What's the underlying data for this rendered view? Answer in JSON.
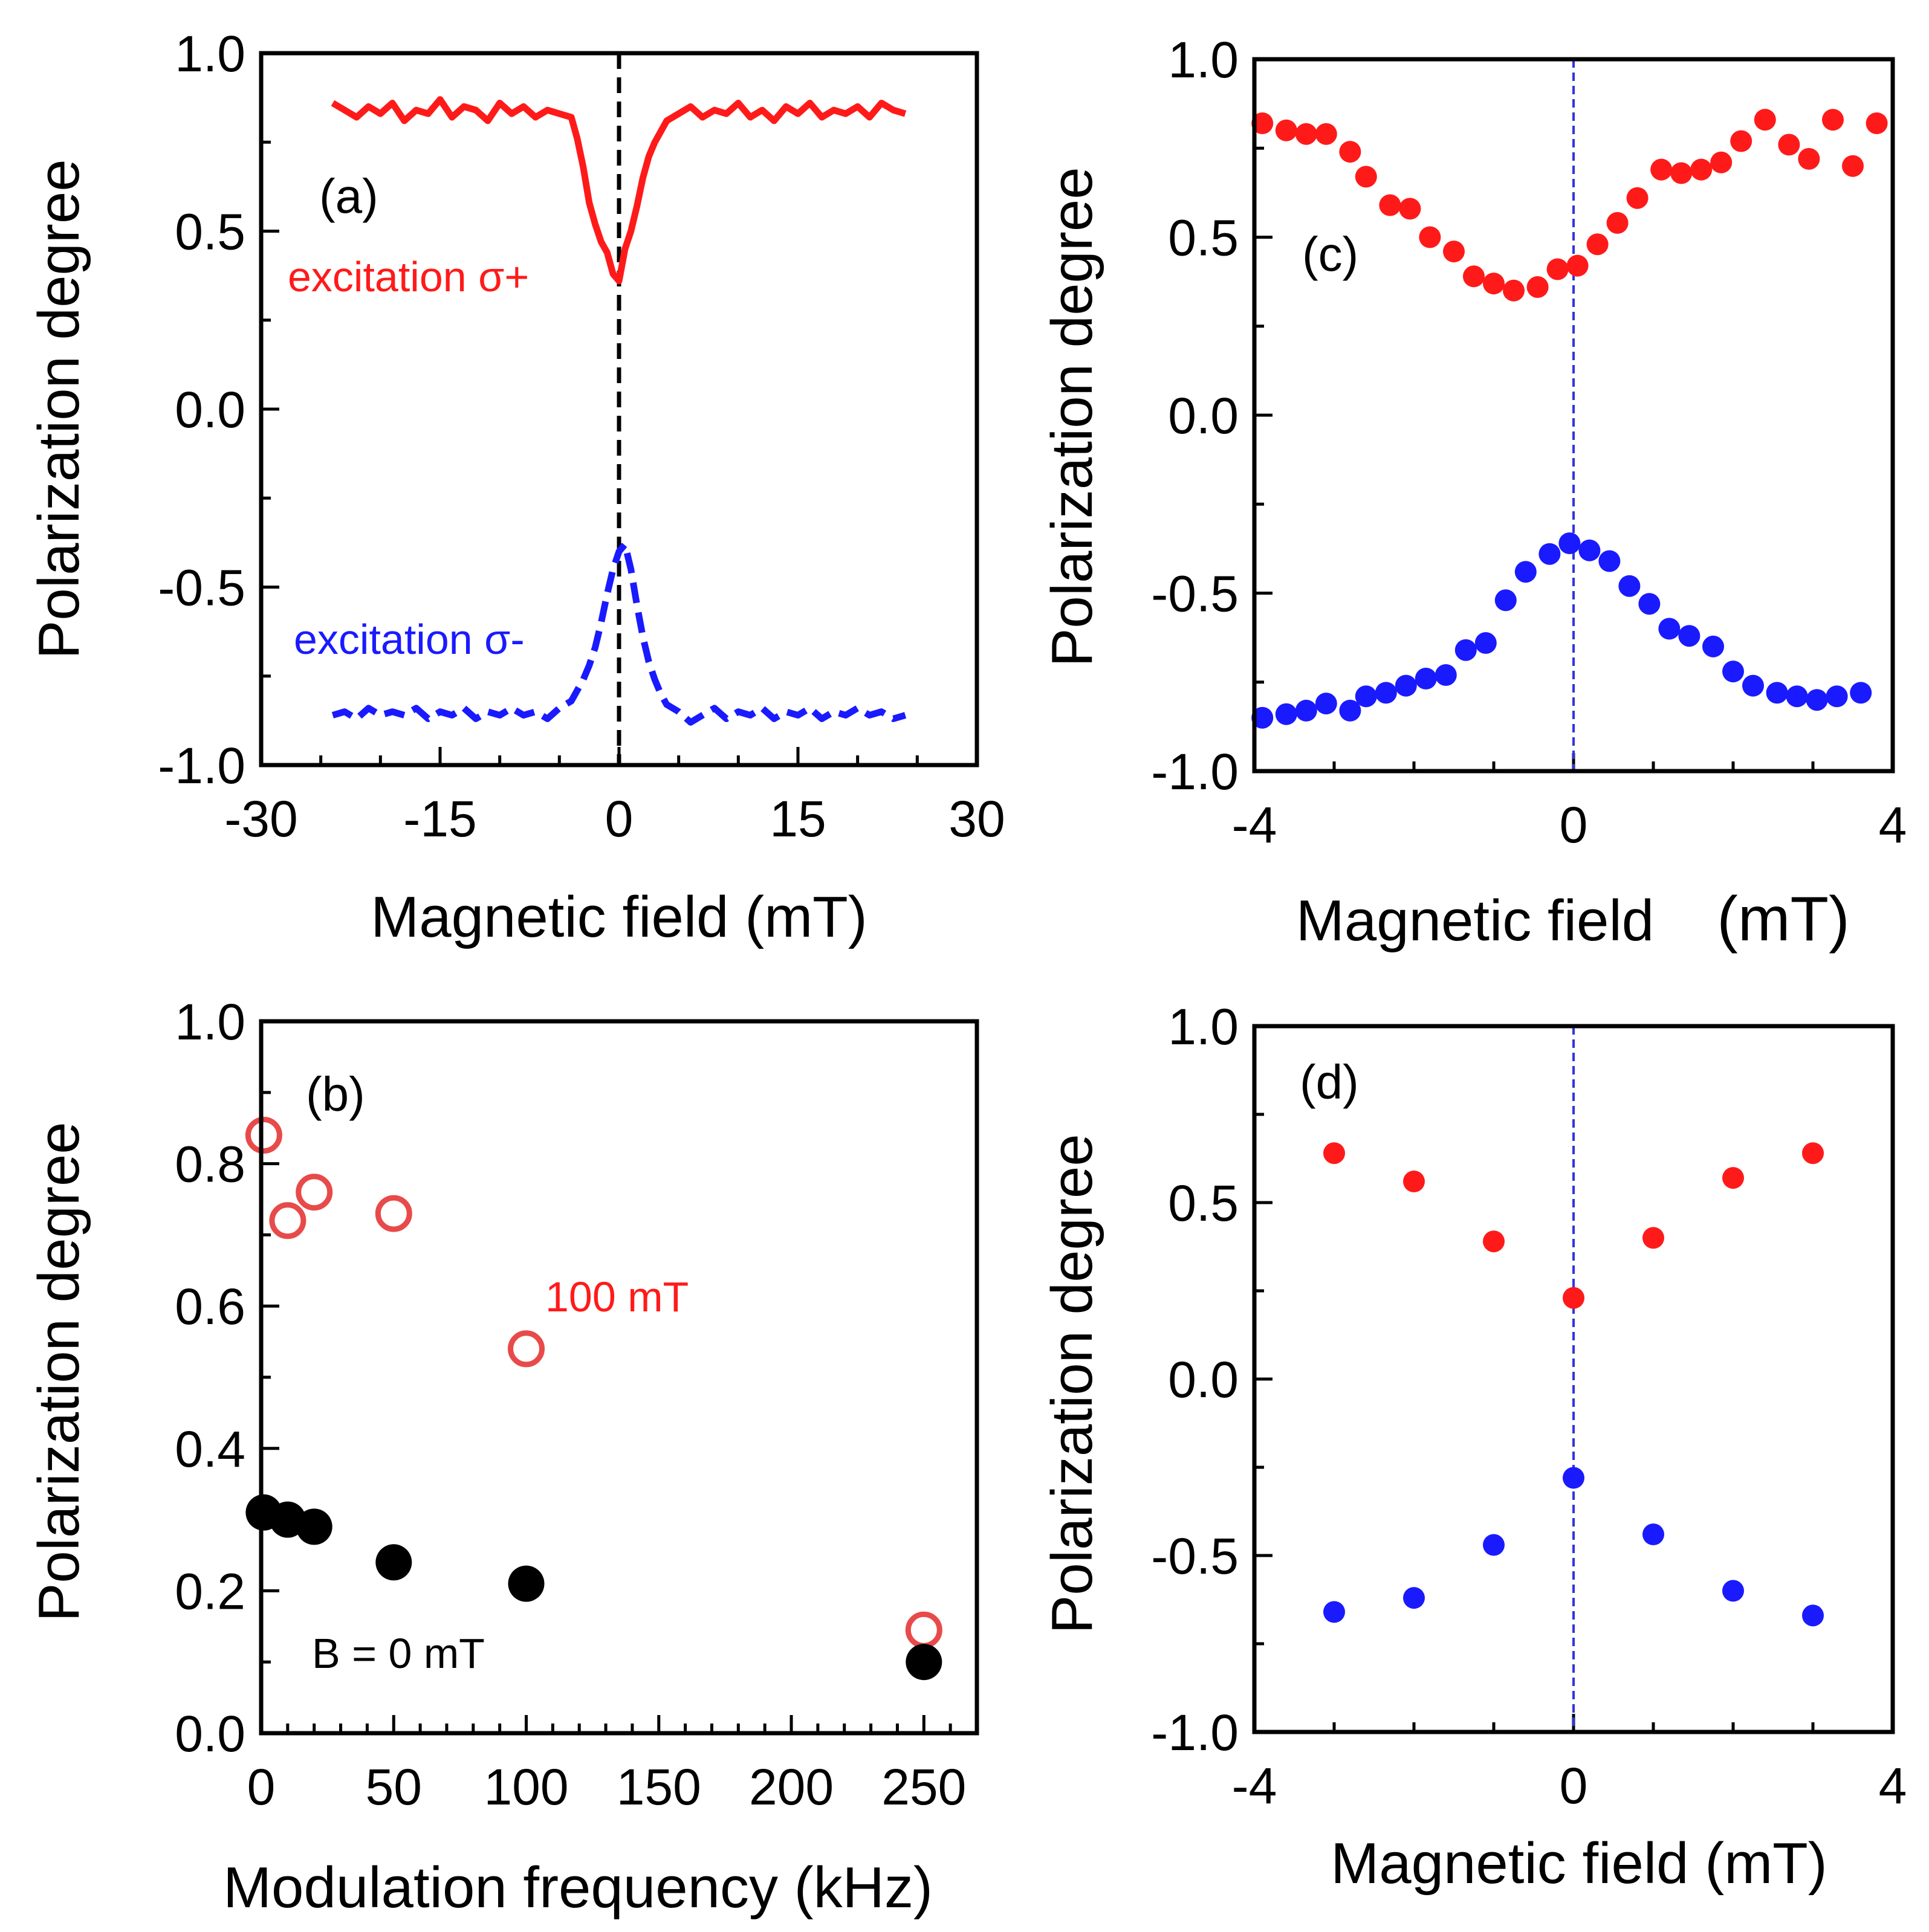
{
  "colors": {
    "red": "#ff1a1a",
    "blue": "#1a1aff",
    "black": "#000000",
    "open_red": "#e84a4a",
    "vline_blue": "#3333dd"
  },
  "chart_data": [
    {
      "panel": "a",
      "type": "line",
      "label": "(a)",
      "xlabel": "Magnetic field  (mT)",
      "ylabel": "Polarization degree",
      "xlim": [
        -30,
        30
      ],
      "ylim": [
        -1.0,
        1.0
      ],
      "xticks": [
        -30,
        -15,
        0,
        15,
        30
      ],
      "xtick_labels": [
        "-30",
        "-15",
        "0",
        "15",
        "30"
      ],
      "yticks": [
        -1.0,
        -0.5,
        0.0,
        0.5,
        1.0
      ],
      "ytick_labels": [
        "-1.0",
        "-0.5",
        "0.0",
        "0.5",
        "1.0"
      ],
      "vline_x": 0,
      "series": [
        {
          "name": "excitation σ+",
          "color": "#ff1a1a",
          "style": "solid",
          "x": [
            -24,
            -23,
            -22,
            -21,
            -20,
            -19,
            -18,
            -17,
            -16,
            -15,
            -14,
            -13,
            -12,
            -11,
            -10,
            -9,
            -8,
            -7,
            -6,
            -5,
            -4,
            -3.5,
            -3,
            -2.5,
            -2,
            -1.5,
            -1,
            -0.5,
            0,
            0.5,
            1,
            1.5,
            2,
            2.5,
            3,
            3.5,
            4,
            5,
            6,
            7,
            8,
            9,
            10,
            11,
            12,
            13,
            14,
            15,
            16,
            17,
            18,
            19,
            20,
            21,
            22,
            23,
            24
          ],
          "values": [
            0.86,
            0.84,
            0.82,
            0.85,
            0.83,
            0.86,
            0.81,
            0.84,
            0.83,
            0.87,
            0.82,
            0.85,
            0.84,
            0.81,
            0.86,
            0.83,
            0.85,
            0.82,
            0.84,
            0.83,
            0.82,
            0.76,
            0.68,
            0.58,
            0.52,
            0.47,
            0.44,
            0.38,
            0.36,
            0.45,
            0.5,
            0.57,
            0.65,
            0.71,
            0.75,
            0.78,
            0.81,
            0.83,
            0.85,
            0.82,
            0.84,
            0.83,
            0.86,
            0.82,
            0.84,
            0.81,
            0.85,
            0.83,
            0.86,
            0.82,
            0.84,
            0.83,
            0.85,
            0.82,
            0.86,
            0.84,
            0.83
          ]
        },
        {
          "name": "excitation σ-",
          "color": "#1a1aff",
          "style": "dashed",
          "x": [
            -24,
            -23,
            -22,
            -21,
            -20,
            -19,
            -18,
            -17,
            -16,
            -15,
            -14,
            -13,
            -12,
            -11,
            -10,
            -9,
            -8,
            -7,
            -6,
            -5,
            -4,
            -3.5,
            -3,
            -2.5,
            -2,
            -1.5,
            -1,
            -0.5,
            0,
            0.5,
            1,
            1.5,
            2,
            2.5,
            3,
            3.5,
            4,
            5,
            6,
            7,
            8,
            9,
            10,
            11,
            12,
            13,
            14,
            15,
            16,
            17,
            18,
            19,
            20,
            21,
            22,
            23,
            24
          ],
          "values": [
            -0.86,
            -0.85,
            -0.87,
            -0.84,
            -0.86,
            -0.85,
            -0.86,
            -0.84,
            -0.87,
            -0.85,
            -0.86,
            -0.84,
            -0.87,
            -0.85,
            -0.86,
            -0.84,
            -0.86,
            -0.85,
            -0.87,
            -0.84,
            -0.82,
            -0.79,
            -0.76,
            -0.72,
            -0.67,
            -0.6,
            -0.52,
            -0.45,
            -0.4,
            -0.38,
            -0.45,
            -0.55,
            -0.64,
            -0.71,
            -0.76,
            -0.8,
            -0.83,
            -0.85,
            -0.88,
            -0.86,
            -0.84,
            -0.87,
            -0.85,
            -0.86,
            -0.84,
            -0.87,
            -0.85,
            -0.86,
            -0.84,
            -0.87,
            -0.85,
            -0.86,
            -0.84,
            -0.86,
            -0.85,
            -0.87,
            -0.86
          ]
        }
      ],
      "annotations": [
        {
          "text": "excitation  σ+",
          "color": "#ff1a1a"
        },
        {
          "text": "excitation  σ-",
          "color": "#1a1aff"
        }
      ]
    },
    {
      "panel": "b",
      "type": "scatter",
      "label": "(b)",
      "xlabel": "Modulation frequency  (kHz)",
      "ylabel": "Polarization degree",
      "xlim": [
        0,
        270
      ],
      "ylim": [
        0.0,
        1.0
      ],
      "xticks": [
        0,
        50,
        100,
        150,
        200,
        250
      ],
      "xtick_labels": [
        "0",
        "50",
        "100",
        "150",
        "200",
        "250"
      ],
      "yticks": [
        0.0,
        0.2,
        0.4,
        0.6,
        0.8,
        1.0
      ],
      "ytick_labels": [
        "0.0",
        "0.2",
        "0.4",
        "0.6",
        "0.8",
        "1.0"
      ],
      "series": [
        {
          "name": "100 mT",
          "color": "#e84a4a",
          "marker": "open-circle",
          "x": [
            1,
            10,
            20,
            50,
            100,
            250
          ],
          "values": [
            0.84,
            0.72,
            0.76,
            0.73,
            0.54,
            0.145
          ]
        },
        {
          "name": "B = 0 mT",
          "color": "#000000",
          "marker": "filled-circle",
          "x": [
            1,
            10,
            20,
            50,
            100,
            250
          ],
          "values": [
            0.31,
            0.3,
            0.29,
            0.24,
            0.21,
            0.1
          ]
        }
      ],
      "annotations": [
        {
          "text": "100 mT",
          "color": "#ff1a1a"
        },
        {
          "text": "B = 0 mT",
          "color": "#000000"
        }
      ]
    },
    {
      "panel": "c",
      "type": "scatter",
      "label": "(c)",
      "xlabel": "Magnetic field",
      "xlabel_unit": "(mT)",
      "ylabel": "Polarization degree",
      "xlim": [
        -4,
        4
      ],
      "ylim": [
        -1.0,
        1.0
      ],
      "xticks": [
        -4,
        0,
        4
      ],
      "xtick_labels": [
        "-4",
        "0",
        "4"
      ],
      "yticks": [
        -1.0,
        -0.5,
        0.0,
        0.5,
        1.0
      ],
      "ytick_labels": [
        "-1.0",
        "-0.5",
        "0.0",
        "0.5",
        "1.0"
      ],
      "vline_x": 0,
      "series": [
        {
          "name": "red",
          "color": "#ff1a1a",
          "marker": "filled-circle",
          "x": [
            -3.9,
            -3.6,
            -3.35,
            -3.1,
            -2.8,
            -2.6,
            -2.3,
            -2.05,
            -1.8,
            -1.5,
            -1.25,
            -1.0,
            -0.75,
            -0.45,
            -0.2,
            0.05,
            0.3,
            0.55,
            0.8,
            1.1,
            1.35,
            1.6,
            1.85,
            2.1,
            2.4,
            2.7,
            2.95,
            3.25,
            3.5,
            3.8
          ],
          "values": [
            0.82,
            0.8,
            0.79,
            0.79,
            0.74,
            0.67,
            0.59,
            0.58,
            0.5,
            0.46,
            0.39,
            0.37,
            0.35,
            0.36,
            0.41,
            0.42,
            0.48,
            0.54,
            0.61,
            0.69,
            0.68,
            0.69,
            0.71,
            0.77,
            0.83,
            0.76,
            0.72,
            0.83,
            0.7,
            0.82
          ]
        },
        {
          "name": "blue",
          "color": "#1a1aff",
          "marker": "filled-circle",
          "x": [
            -3.9,
            -3.6,
            -3.35,
            -3.1,
            -2.8,
            -2.6,
            -2.35,
            -2.1,
            -1.85,
            -1.6,
            -1.35,
            -1.1,
            -0.85,
            -0.6,
            -0.3,
            -0.05,
            0.2,
            0.45,
            0.7,
            0.95,
            1.2,
            1.45,
            1.75,
            2.0,
            2.25,
            2.55,
            2.8,
            3.05,
            3.3,
            3.6
          ],
          "values": [
            -0.85,
            -0.84,
            -0.83,
            -0.81,
            -0.83,
            -0.79,
            -0.78,
            -0.76,
            -0.74,
            -0.73,
            -0.66,
            -0.64,
            -0.52,
            -0.44,
            -0.39,
            -0.36,
            -0.38,
            -0.41,
            -0.48,
            -0.53,
            -0.6,
            -0.62,
            -0.65,
            -0.72,
            -0.76,
            -0.78,
            -0.79,
            -0.8,
            -0.79,
            -0.78
          ]
        }
      ]
    },
    {
      "panel": "d",
      "type": "scatter",
      "label": "(d)",
      "xlabel": "Magnetic field (mT)",
      "ylabel": "Polarization degree",
      "xlim": [
        -4,
        4
      ],
      "ylim": [
        -1.0,
        1.0
      ],
      "xticks": [
        -4,
        0,
        4
      ],
      "xtick_labels": [
        "-4",
        "0",
        "4"
      ],
      "yticks": [
        -1.0,
        -0.5,
        0.0,
        0.5,
        1.0
      ],
      "ytick_labels": [
        "-1.0",
        "-0.5",
        "0.0",
        "0.5",
        "1.0"
      ],
      "vline_x": 0,
      "series": [
        {
          "name": "red",
          "color": "#ff1a1a",
          "marker": "filled-circle",
          "x": [
            -3,
            -2,
            -1,
            0,
            1,
            2,
            3
          ],
          "values": [
            0.64,
            0.56,
            0.39,
            0.23,
            0.4,
            0.57,
            0.64
          ]
        },
        {
          "name": "blue",
          "color": "#1a1aff",
          "marker": "filled-circle",
          "x": [
            -3,
            -2,
            -1,
            0,
            1,
            2,
            3
          ],
          "values": [
            -0.66,
            -0.62,
            -0.47,
            -0.28,
            -0.44,
            -0.6,
            -0.67
          ]
        }
      ]
    }
  ]
}
